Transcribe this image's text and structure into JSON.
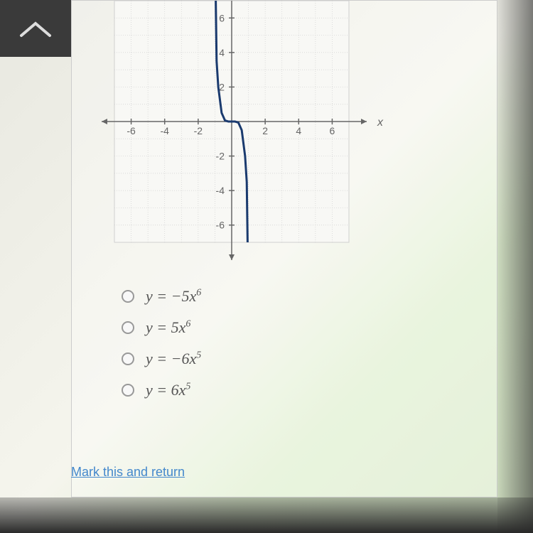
{
  "graph": {
    "type": "line",
    "xlim": [
      -7,
      7
    ],
    "ylim": [
      -7,
      7
    ],
    "xtick_labels": [
      "-6",
      "-4",
      "-2",
      "2",
      "4",
      "6"
    ],
    "xtick_positions": [
      -6,
      -4,
      -2,
      2,
      4,
      6
    ],
    "ytick_labels": [
      "6",
      "4",
      "2",
      "-2",
      "-4",
      "-6"
    ],
    "ytick_positions": [
      6,
      4,
      2,
      -2,
      -4,
      -6
    ],
    "x_axis_label": "x",
    "grid_color": "#d0d0d0",
    "grid_bg": "#f8f8f5",
    "axis_color": "#666666",
    "curve_color": "#1a3a6e",
    "curve_width": 3,
    "tick_fontsize": 14,
    "tick_color": "#666666",
    "curve_points": [
      [
        -0.95,
        7
      ],
      [
        -0.9,
        3.5
      ],
      [
        -0.8,
        2.0
      ],
      [
        -0.6,
        0.5
      ],
      [
        -0.4,
        0.06
      ],
      [
        -0.2,
        0.002
      ],
      [
        0,
        0
      ],
      [
        0.2,
        -0.002
      ],
      [
        0.4,
        -0.06
      ],
      [
        0.6,
        -0.5
      ],
      [
        0.8,
        -2.0
      ],
      [
        0.9,
        -3.5
      ],
      [
        0.95,
        -7
      ]
    ]
  },
  "options": [
    {
      "label_html": "y = −5x<sup>6</sup>"
    },
    {
      "label_html": "y = 5x<sup>6</sup>"
    },
    {
      "label_html": "y = −6x<sup>5</sup>"
    },
    {
      "label_html": "y = 6x<sup>5</sup>"
    }
  ],
  "link": {
    "text": "Mark this and return"
  }
}
